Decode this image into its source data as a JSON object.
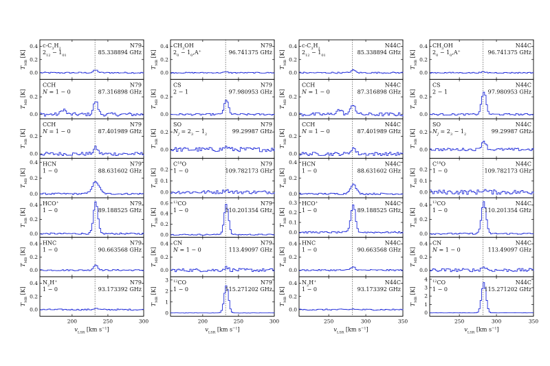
{
  "chart_data": {
    "type": "line",
    "style": {
      "spectrum_color": "#1f2bd9",
      "axis_color": "#000000",
      "reference_line": "dotted",
      "draw": "steps"
    },
    "columns": [
      {
        "source": "N79",
        "xlim": [
          155,
          300
        ],
        "xticks": [
          "200",
          "250",
          "300"
        ],
        "xtick_values": [
          200,
          250,
          300
        ],
        "vline": 232,
        "xlabel": "v_LSR [km s⁻¹]",
        "ylabel": "T_MB [K]",
        "panels": [
          {
            "mol_html": "c-C<tspan baseline-shift='sub' font-size='5'>3</tspan>H<tspan baseline-shift='sub' font-size='5'>2</tspan>",
            "trans_html": "2<tspan baseline-shift='sub' font-size='5'>12</tspan> − 1<tspan baseline-shift='sub' font-size='5'>01</tspan>",
            "freq": "85.338894 GHz",
            "source": "N79",
            "ylim": [
              -0.1,
              0.5
            ],
            "yticks": [
              "0.0",
              "0.2",
              "0.4"
            ],
            "ytick_values": [
              0.0,
              0.2,
              0.4
            ],
            "noise": 0.01,
            "peak": 0.04,
            "width": 3
          },
          {
            "mol_html": "CCH",
            "trans_html": "<tspan font-style='italic'>N</tspan> = 1 − 0",
            "freq": "87.316898 GHz",
            "source": "N79",
            "ylim": [
              -0.05,
              0.4
            ],
            "yticks": [
              "0.0",
              "0.2"
            ],
            "ytick_values": [
              0.0,
              0.2
            ],
            "noise": 0.02,
            "peak": 0.15,
            "width": 3,
            "extra": [
              [
                187,
                0.06,
                3
              ]
            ]
          },
          {
            "mol_html": "CCH",
            "trans_html": "<tspan font-style='italic'>N</tspan> = 1 − 0",
            "freq": "87.401989 GHz",
            "source": "N79",
            "ylim": [
              -0.05,
              0.4
            ],
            "yticks": [
              "0.0",
              "0.2"
            ],
            "ytick_values": [
              0.0,
              0.2
            ],
            "noise": 0.02,
            "peak": 0.07,
            "width": 3
          },
          {
            "mol_html": "HCN",
            "trans_html": "1 − 0",
            "freq": "88.631602 GHz",
            "source": "N79",
            "ylim": [
              -0.05,
              0.45
            ],
            "yticks": [
              "0.0",
              "0.2",
              "0.4"
            ],
            "ytick_values": [
              0.0,
              0.2,
              0.4
            ],
            "noise": 0.01,
            "peak": 0.15,
            "width": 5
          },
          {
            "mol_html": "HCO<tspan baseline-shift='super' font-size='5'>+</tspan>",
            "trans_html": "1 − 0",
            "freq": "89.188525 GHz",
            "source": "N79",
            "ylim": [
              -0.05,
              0.5
            ],
            "yticks": [
              "0.0",
              "0.2",
              "0.4"
            ],
            "ytick_values": [
              0.0,
              0.2,
              0.4
            ],
            "noise": 0.01,
            "peak": 0.44,
            "width": 3
          },
          {
            "mol_html": "HNC",
            "trans_html": "1 − 0",
            "freq": "90.663568 GHz",
            "source": "N79",
            "ylim": [
              -0.1,
              0.5
            ],
            "yticks": [
              "0.0",
              "0.2",
              "0.4"
            ],
            "ytick_values": [
              0.0,
              0.2,
              0.4
            ],
            "noise": 0.01,
            "peak": 0.08,
            "width": 3
          },
          {
            "mol_html": "N<tspan baseline-shift='sub' font-size='5'>2</tspan>H<tspan baseline-shift='super' font-size='5'>+</tspan>",
            "trans_html": "1 − 0",
            "freq": "93.173392 GHz",
            "source": "N79",
            "ylim": [
              -0.1,
              0.5
            ],
            "yticks": [
              "0.0",
              "0.2",
              "0.4"
            ],
            "ytick_values": [
              0.0,
              0.2,
              0.4
            ],
            "noise": 0.01,
            "peak": 0.02,
            "width": 3
          }
        ]
      },
      {
        "source": "N79",
        "xlim": [
          155,
          300
        ],
        "xticks": [
          "200",
          "250",
          "300"
        ],
        "xtick_values": [
          200,
          250,
          300
        ],
        "vline": 232,
        "xlabel": "v_LSR [km s⁻¹]",
        "ylabel": "T_MB [K]",
        "panels": [
          {
            "mol_html": "CH<tspan baseline-shift='sub' font-size='5'>3</tspan>OH",
            "trans_html": "2<tspan baseline-shift='sub' font-size='5'>0</tspan> − 1<tspan baseline-shift='sub' font-size='5'>0</tspan>,A<tspan baseline-shift='super' font-size='5'>+</tspan>",
            "freq": "96.741375 GHz",
            "source": "N79",
            "ylim": [
              -0.1,
              0.5
            ],
            "yticks": [
              "0.0",
              "0.2",
              "0.4"
            ],
            "ytick_values": [
              0.0,
              0.2,
              0.4
            ],
            "noise": 0.008,
            "peak": 0.01,
            "width": 3
          },
          {
            "mol_html": "CS",
            "trans_html": "2 − 1",
            "freq": "97.980953 GHz",
            "source": "N79",
            "ylim": [
              -0.05,
              0.4
            ],
            "yticks": [
              "0.0",
              "0.2"
            ],
            "ytick_values": [
              0.0,
              0.2
            ],
            "noise": 0.01,
            "peak": 0.16,
            "width": 3
          },
          {
            "mol_html": "SO",
            "trans_html": "<tspan font-style='italic'>N</tspan><tspan baseline-shift='sub' font-size='5' font-style='italic'>J</tspan> = 2<tspan baseline-shift='sub' font-size='5'>3</tspan> − 1<tspan baseline-shift='sub' font-size='5'>2</tspan>",
            "freq": "99.29987 GHz",
            "source": "N79",
            "ylim": [
              -0.1,
              0.35
            ],
            "yticks": [
              "0.0",
              "0.2"
            ],
            "ytick_values": [
              0.0,
              0.2
            ],
            "noise": 0.025,
            "peak": 0.03,
            "width": 3
          },
          {
            "mol_html": "C<tspan baseline-shift='super' font-size='5'>18</tspan>O",
            "trans_html": "1 − 0",
            "freq": "109.782173 GHz",
            "source": "N79",
            "ylim": [
              -0.05,
              0.3
            ],
            "yticks": [
              "0.0",
              "0.1",
              "0.2"
            ],
            "ytick_values": [
              0.0,
              0.1,
              0.2
            ],
            "noise": 0.015,
            "peak": 0.02,
            "width": 3
          },
          {
            "mol_html": "<tspan baseline-shift='super' font-size='5'>13</tspan>CO",
            "trans_html": "1 − 0",
            "freq": "110.201354 GHz",
            "source": "N79",
            "ylim": [
              -0.05,
              0.7
            ],
            "yticks": [
              "0.0",
              "0.2",
              "0.4",
              "0.6"
            ],
            "ytick_values": [
              0.0,
              0.2,
              0.4,
              0.6
            ],
            "noise": 0.01,
            "peak": 0.58,
            "width": 3
          },
          {
            "mol_html": "CN",
            "trans_html": "<tspan font-style='italic'>N</tspan> = 1 − 0",
            "freq": "113.49097 GHz",
            "source": "N79",
            "ylim": [
              -0.1,
              0.5
            ],
            "yticks": [
              "0.0",
              "0.2",
              "0.4"
            ],
            "ytick_values": [
              0.0,
              0.2,
              0.4
            ],
            "noise": 0.025,
            "peak": 0.04,
            "width": 3
          },
          {
            "mol_html": "<tspan baseline-shift='super' font-size='5'>12</tspan>CO",
            "trans_html": "1 − 0",
            "freq": "115.271202 GHz",
            "source": "N79",
            "ylim": [
              -0.3,
              3.3
            ],
            "yticks": [
              "0",
              "1",
              "2",
              "3"
            ],
            "ytick_values": [
              0,
              1,
              2,
              3
            ],
            "noise": 0.01,
            "peak": 2.5,
            "width": 3
          }
        ]
      },
      {
        "source": "N44C",
        "xlim": [
          210,
          350
        ],
        "xticks": [
          "250",
          "300",
          "350"
        ],
        "xtick_values": [
          250,
          300,
          350
        ],
        "vline": 282,
        "xlabel": "v_LSR [km s⁻¹]",
        "ylabel": "T_MB [K]",
        "panels": [
          {
            "mol_html": "c-C<tspan baseline-shift='sub' font-size='5'>3</tspan>H<tspan baseline-shift='sub' font-size='5'>2</tspan>",
            "trans_html": "2<tspan baseline-shift='sub' font-size='5'>12</tspan> − 1<tspan baseline-shift='sub' font-size='5'>01</tspan>",
            "freq": "85.338894 GHz",
            "source": "N44C",
            "ylim": [
              -0.1,
              0.5
            ],
            "yticks": [
              "0.0",
              "0.2",
              "0.4"
            ],
            "ytick_values": [
              0.0,
              0.2,
              0.4
            ],
            "noise": 0.01,
            "peak": 0.04,
            "width": 3
          },
          {
            "mol_html": "CCH",
            "trans_html": "<tspan font-style='italic'>N</tspan> = 1 − 0",
            "freq": "87.316898 GHz",
            "source": "N44C",
            "ylim": [
              -0.05,
              0.4
            ],
            "yticks": [
              "0.0",
              "0.2"
            ],
            "ytick_values": [
              0.0,
              0.2
            ],
            "noise": 0.02,
            "peak": 0.12,
            "width": 3,
            "extra": [
              [
                263,
                0.05,
                4
              ]
            ]
          },
          {
            "mol_html": "CCH",
            "trans_html": "<tspan font-style='italic'>N</tspan> = 1 − 0",
            "freq": "87.401989 GHz",
            "source": "N44C",
            "ylim": [
              -0.05,
              0.4
            ],
            "yticks": [
              "0.0",
              "0.2"
            ],
            "ytick_values": [
              0.0,
              0.2
            ],
            "noise": 0.02,
            "peak": 0.07,
            "width": 3
          },
          {
            "mol_html": "HCN",
            "trans_html": "1 − 0",
            "freq": "88.631602 GHz",
            "source": "N44C",
            "ylim": [
              -0.05,
              0.45
            ],
            "yticks": [
              "0.0",
              "0.2",
              "0.4"
            ],
            "ytick_values": [
              0.0,
              0.2,
              0.4
            ],
            "noise": 0.01,
            "peak": 0.12,
            "width": 4
          },
          {
            "mol_html": "HCO<tspan baseline-shift='super' font-size='5'>+</tspan>",
            "trans_html": "1 − 0",
            "freq": "89.188525 GHz",
            "source": "N44C",
            "ylim": [
              -0.05,
              0.35
            ],
            "yticks": [
              "0.0",
              "0.1",
              "0.2",
              "0.3"
            ],
            "ytick_values": [
              0.0,
              0.1,
              0.2,
              0.3
            ],
            "noise": 0.008,
            "peak": 0.28,
            "width": 3
          },
          {
            "mol_html": "HNC",
            "trans_html": "1 − 0",
            "freq": "90.663568 GHz",
            "source": "N44C",
            "ylim": [
              -0.1,
              0.5
            ],
            "yticks": [
              "0.0",
              "0.2",
              "0.4"
            ],
            "ytick_values": [
              0.0,
              0.2,
              0.4
            ],
            "noise": 0.01,
            "peak": 0.05,
            "width": 3
          },
          {
            "mol_html": "N<tspan baseline-shift='sub' font-size='5'>2</tspan>H<tspan baseline-shift='super' font-size='5'>+</tspan>",
            "trans_html": "1 − 0",
            "freq": "93.173392 GHz",
            "source": "N44C",
            "ylim": [
              -0.1,
              0.5
            ],
            "yticks": [
              "0.0",
              "0.2",
              "0.4"
            ],
            "ytick_values": [
              0.0,
              0.2,
              0.4
            ],
            "noise": 0.01,
            "peak": 0.01,
            "width": 3
          }
        ]
      },
      {
        "source": "N44C",
        "xlim": [
          210,
          350
        ],
        "xticks": [
          "250",
          "300",
          "350"
        ],
        "xtick_values": [
          250,
          300,
          350
        ],
        "vline": 282,
        "xlabel": "v_LSR [km s⁻¹]",
        "ylabel": "T_MB [K]",
        "panels": [
          {
            "mol_html": "CH<tspan baseline-shift='sub' font-size='5'>3</tspan>OH",
            "trans_html": "2<tspan baseline-shift='sub' font-size='5'>0</tspan> − 1<tspan baseline-shift='sub' font-size='5'>0</tspan>,A<tspan baseline-shift='super' font-size='5'>+</tspan>",
            "freq": "96.741375 GHz",
            "source": "N44C",
            "ylim": [
              -0.1,
              0.5
            ],
            "yticks": [
              "0.0",
              "0.2",
              "0.4"
            ],
            "ytick_values": [
              0.0,
              0.2,
              0.4
            ],
            "noise": 0.008,
            "peak": 0.01,
            "width": 3
          },
          {
            "mol_html": "CS",
            "trans_html": "2 − 1",
            "freq": "97.980953 GHz",
            "source": "N44C",
            "ylim": [
              -0.05,
              0.4
            ],
            "yticks": [
              "0.0",
              "0.2"
            ],
            "ytick_values": [
              0.0,
              0.2
            ],
            "noise": 0.01,
            "peak": 0.26,
            "width": 3
          },
          {
            "mol_html": "SO",
            "trans_html": "<tspan font-style='italic'>N</tspan><tspan baseline-shift='sub' font-size='5' font-style='italic'>J</tspan> = 2<tspan baseline-shift='sub' font-size='5'>3</tspan> − 1<tspan baseline-shift='sub' font-size='5'>2</tspan>",
            "freq": "99.29987 GHz",
            "source": "N44C",
            "ylim": [
              -0.1,
              0.35
            ],
            "yticks": [
              "0.0",
              "0.2"
            ],
            "ytick_values": [
              0.0,
              0.2
            ],
            "noise": 0.015,
            "peak": 0.1,
            "width": 3
          },
          {
            "mol_html": "C<tspan baseline-shift='super' font-size='5'>18</tspan>O",
            "trans_html": "1 − 0",
            "freq": "109.782173 GHz",
            "source": "N44C",
            "ylim": [
              -0.05,
              0.3
            ],
            "yticks": [
              "0.0",
              "0.1",
              "0.2"
            ],
            "ytick_values": [
              0.0,
              0.1,
              0.2
            ],
            "noise": 0.02,
            "peak": 0.02,
            "width": 3
          },
          {
            "mol_html": "<tspan baseline-shift='super' font-size='5'>13</tspan>CO",
            "trans_html": "1 − 0",
            "freq": "110.201354 GHz",
            "source": "N44C",
            "ylim": [
              -0.05,
              0.5
            ],
            "yticks": [
              "0.0",
              "0.2",
              "0.4"
            ],
            "ytick_values": [
              0.0,
              0.2,
              0.4
            ],
            "noise": 0.01,
            "peak": 0.45,
            "width": 3
          },
          {
            "mol_html": "CN",
            "trans_html": "<tspan font-style='italic'>N</tspan> = 1 − 0",
            "freq": "113.49097 GHz",
            "source": "N44C",
            "ylim": [
              -0.1,
              0.5
            ],
            "yticks": [
              "0.0",
              "0.2",
              "0.4"
            ],
            "ytick_values": [
              0.0,
              0.2,
              0.4
            ],
            "noise": 0.025,
            "peak": 0.05,
            "width": 3
          },
          {
            "mol_html": "<tspan baseline-shift='super' font-size='5'>12</tspan>CO",
            "trans_html": "1 − 0",
            "freq": "115.271202 GHz",
            "source": "N44C",
            "ylim": [
              -0.4,
              4.3
            ],
            "yticks": [
              "0",
              "1",
              "2",
              "3",
              "4"
            ],
            "ytick_values": [
              0,
              1,
              2,
              3,
              4
            ],
            "noise": 0.01,
            "peak": 3.6,
            "width": 3
          }
        ]
      }
    ]
  }
}
